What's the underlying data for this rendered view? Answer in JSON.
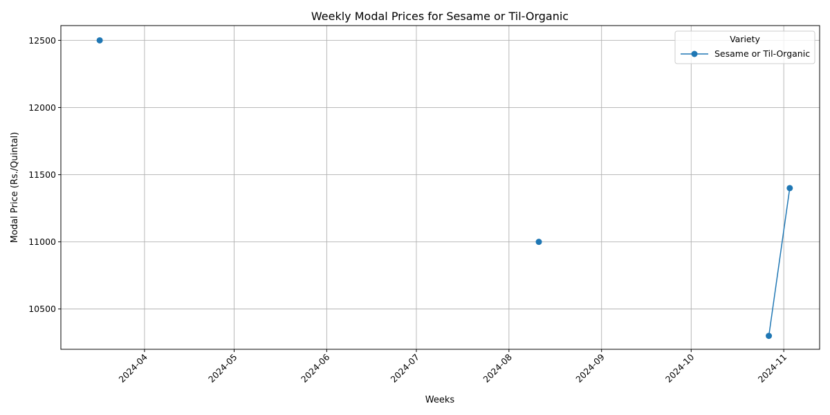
{
  "chart_data": {
    "type": "line",
    "title": "Weekly Modal Prices for Sesame or Til-Organic",
    "xlabel": "Weeks",
    "ylabel": "Modal Price (Rs./Quintal)",
    "x_tick_labels": [
      "2024-04",
      "2024-05",
      "2024-06",
      "2024-07",
      "2024-08",
      "2024-09",
      "2024-10",
      "2024-11"
    ],
    "x_tick_dates": [
      "2024-04-01",
      "2024-05-01",
      "2024-06-01",
      "2024-07-01",
      "2024-08-01",
      "2024-09-01",
      "2024-10-01",
      "2024-11-01"
    ],
    "xlim": [
      "2024-03-04",
      "2024-11-13"
    ],
    "y_ticks": [
      10500,
      11000,
      11500,
      12000,
      12500
    ],
    "ylim": [
      10200,
      12610
    ],
    "grid": true,
    "legend": {
      "title": "Variety",
      "placement": "upper-right"
    },
    "series": [
      {
        "name": "Sesame or Til-Organic",
        "color": "#1f77b4",
        "marker": "circle",
        "points": [
          {
            "x": "2024-03-17",
            "y": 12500
          },
          {
            "x": "2024-08-11",
            "y": 11000
          },
          {
            "x": "2024-10-27",
            "y": 10300
          },
          {
            "x": "2024-11-03",
            "y": 11400
          }
        ]
      }
    ]
  }
}
